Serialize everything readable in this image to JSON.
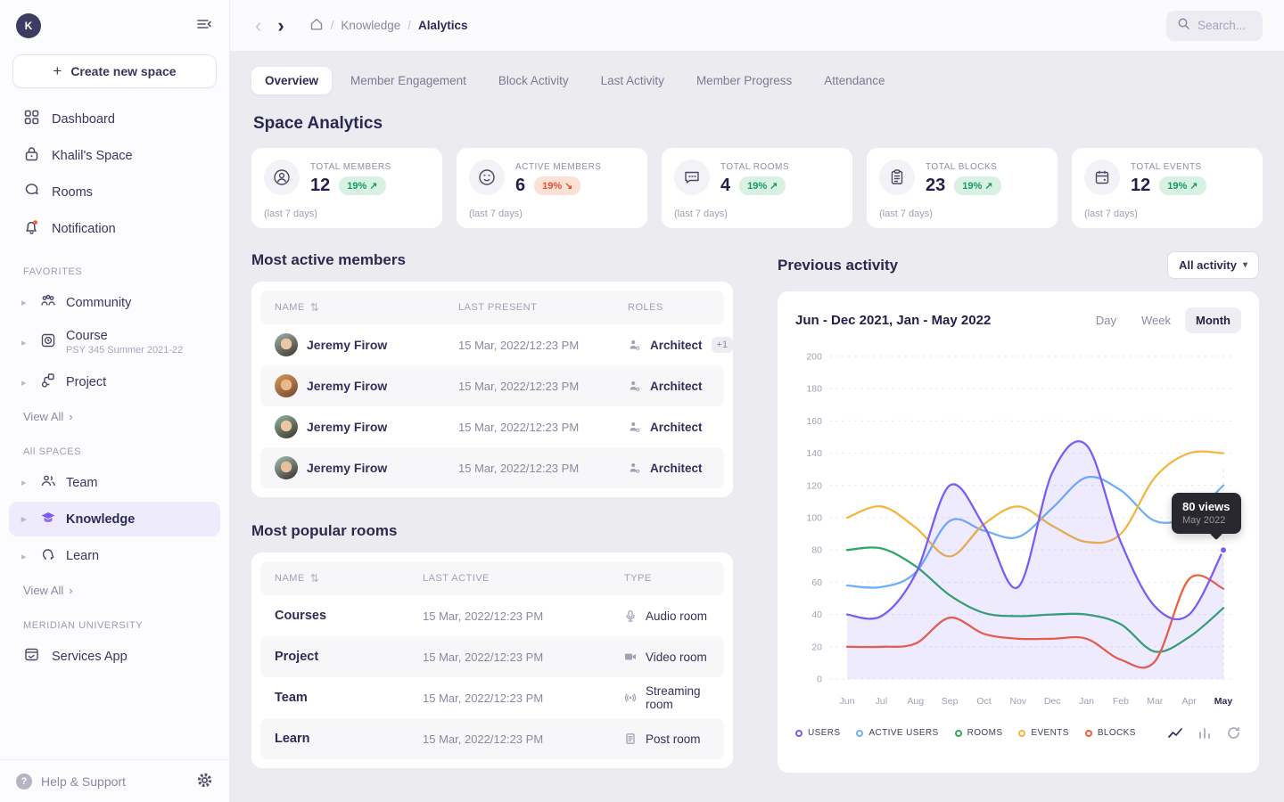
{
  "sidebar": {
    "avatar_initial": "K",
    "create_button": "Create new space",
    "nav": [
      {
        "label": "Dashboard"
      },
      {
        "label": "Khalil's Space"
      },
      {
        "label": "Rooms"
      },
      {
        "label": "Notification"
      }
    ],
    "favorites_label": "FAVORITES",
    "favorites": [
      {
        "label": "Community"
      },
      {
        "label": "Course",
        "sub": "PSY 345 Summer 2021-22"
      },
      {
        "label": "Project"
      }
    ],
    "view_all": "View All",
    "all_spaces_label": "All SPACES",
    "spaces": [
      {
        "label": "Team"
      },
      {
        "label": "Knowledge"
      },
      {
        "label": "Learn"
      }
    ],
    "org_label": "MERIDIAN UNIVERSITY",
    "org_app": "Services App",
    "help": "Help & Support"
  },
  "topbar": {
    "breadcrumb_parent": "Knowledge",
    "breadcrumb_current": "Alalytics",
    "search_placeholder": "Search..."
  },
  "tabs": [
    "Overview",
    "Member Engagement",
    "Block Activity",
    "Last Activity",
    "Member Progress",
    "Attendance"
  ],
  "page": {
    "analytics_heading": "Space Analytics"
  },
  "stats": {
    "period": "(last 7 days)",
    "cards": [
      {
        "label": "TOTAL MEMBERS",
        "value": "12",
        "change": "19%",
        "arrow": "↗",
        "direction": "up"
      },
      {
        "label": "ACTIVE MEMBERS",
        "value": "6",
        "change": "19%",
        "arrow": "↘",
        "direction": "down"
      },
      {
        "label": "TOTAL ROOMS",
        "value": "4",
        "change": "19%",
        "arrow": "↗",
        "direction": "up"
      },
      {
        "label": "TOTAL BLOCKS",
        "value": "23",
        "change": "19%",
        "arrow": "↗",
        "direction": "up"
      },
      {
        "label": "TOTAL EVENTS",
        "value": "12",
        "change": "19%",
        "arrow": "↗",
        "direction": "up"
      }
    ]
  },
  "members": {
    "heading": "Most active members",
    "columns": [
      "NAME",
      "LAST PRESENT",
      "ROLES"
    ],
    "rows": [
      {
        "name": "Jeremy Firow",
        "last_present": "15 Mar, 2022/12:23 PM",
        "role": "Architect",
        "extra": "+1"
      },
      {
        "name": "Jeremy Firow",
        "last_present": "15 Mar, 2022/12:23 PM",
        "role": "Architect"
      },
      {
        "name": "Jeremy Firow",
        "last_present": "15 Mar, 2022/12:23 PM",
        "role": "Architect"
      },
      {
        "name": "Jeremy Firow",
        "last_present": "15 Mar, 2022/12:23 PM",
        "role": "Architect"
      }
    ]
  },
  "rooms": {
    "heading": "Most popular rooms",
    "columns": [
      "NAME",
      "LAST ACTIVE",
      "TYPE"
    ],
    "rows": [
      {
        "name": "Courses",
        "last_active": "15 Mar, 2022/12:23 PM",
        "type": "Audio room",
        "icon": "mic"
      },
      {
        "name": "Project",
        "last_active": "15 Mar, 2022/12:23 PM",
        "type": "Video room",
        "icon": "video"
      },
      {
        "name": "Team",
        "last_active": "15 Mar, 2022/12:23 PM",
        "type": "Streaming room",
        "icon": "stream"
      },
      {
        "name": "Learn",
        "last_active": "15 Mar, 2022/12:23 PM",
        "type": "Post room",
        "icon": "post"
      }
    ]
  },
  "activity": {
    "heading": "Previous activity",
    "filter_label": "All activity",
    "toggles": [
      "Day",
      "Week",
      "Month"
    ],
    "active_toggle": "Month"
  },
  "chart_data": {
    "type": "line",
    "title": "Jun - Dec 2021, Jan - May 2022",
    "x": [
      "Jun",
      "Jul",
      "Aug",
      "Sep",
      "Oct",
      "Nov",
      "Dec",
      "Jan",
      "Feb",
      "Mar",
      "Apr",
      "May"
    ],
    "ylim": [
      0,
      200
    ],
    "ytick_step": 20,
    "grid": true,
    "legend_position": "bottom",
    "series": [
      {
        "name": "USERS",
        "color": "#7b5cf5",
        "fill": true,
        "values": [
          40,
          39,
          65,
          120,
          95,
          57,
          128,
          145,
          85,
          45,
          40,
          80
        ]
      },
      {
        "name": "ACTIVE USERS",
        "color": "#6fb1f7",
        "fill": false,
        "values": [
          58,
          57,
          66,
          98,
          92,
          88,
          106,
          125,
          117,
          98,
          101,
          120
        ]
      },
      {
        "name": "ROOMS",
        "color": "#2fa866",
        "fill": false,
        "values": [
          80,
          81,
          70,
          52,
          41,
          39,
          40,
          40,
          34,
          17,
          26,
          44
        ]
      },
      {
        "name": "EVENTS",
        "color": "#f3b73f",
        "fill": false,
        "values": [
          100,
          107,
          94,
          76,
          96,
          107,
          95,
          85,
          90,
          125,
          140,
          140
        ]
      },
      {
        "name": "BLOCKS",
        "color": "#f0603c",
        "fill": false,
        "values": [
          20,
          20,
          22,
          38,
          28,
          25,
          25,
          25,
          12,
          11,
          62,
          56
        ]
      }
    ],
    "tooltip": {
      "series": "USERS",
      "x": "May",
      "x_index": 11,
      "value": 80,
      "value_label": "80 views",
      "period_label": "May 2022"
    }
  }
}
